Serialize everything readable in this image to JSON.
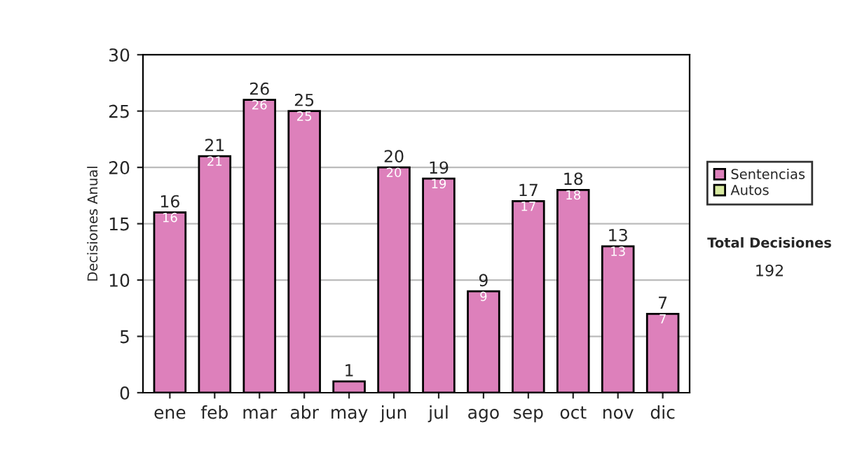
{
  "chart_data": {
    "type": "bar",
    "ylabel": "Decisiones Anual",
    "categories": [
      "ene",
      "feb",
      "mar",
      "abr",
      "may",
      "jun",
      "jul",
      "ago",
      "sep",
      "oct",
      "nov",
      "dic"
    ],
    "series": [
      {
        "name": "Sentencias",
        "color": "#dd80bb",
        "values": [
          16,
          21,
          26,
          25,
          1,
          20,
          19,
          9,
          17,
          18,
          13,
          7
        ],
        "value_labels": [
          "16",
          "21",
          "26",
          "25",
          null,
          "20",
          "19",
          "9",
          "17",
          "18",
          "13",
          "7"
        ]
      },
      {
        "name": "Autos",
        "color": "#d8eaa0",
        "values": [
          null,
          null,
          null,
          null,
          null,
          null,
          null,
          null,
          null,
          null,
          null,
          null
        ]
      }
    ],
    "stacked": true,
    "totals": [
      "16",
      "21",
      "26",
      "25",
      "1",
      "20",
      "19",
      "9",
      "17",
      "18",
      "13",
      "7"
    ],
    "ylim": [
      0,
      30
    ],
    "yticks": [
      0,
      5,
      10,
      15,
      20,
      25,
      30
    ],
    "grid": "y",
    "legend": "right",
    "annotations": [
      "Total Decisiones",
      "192"
    ]
  }
}
